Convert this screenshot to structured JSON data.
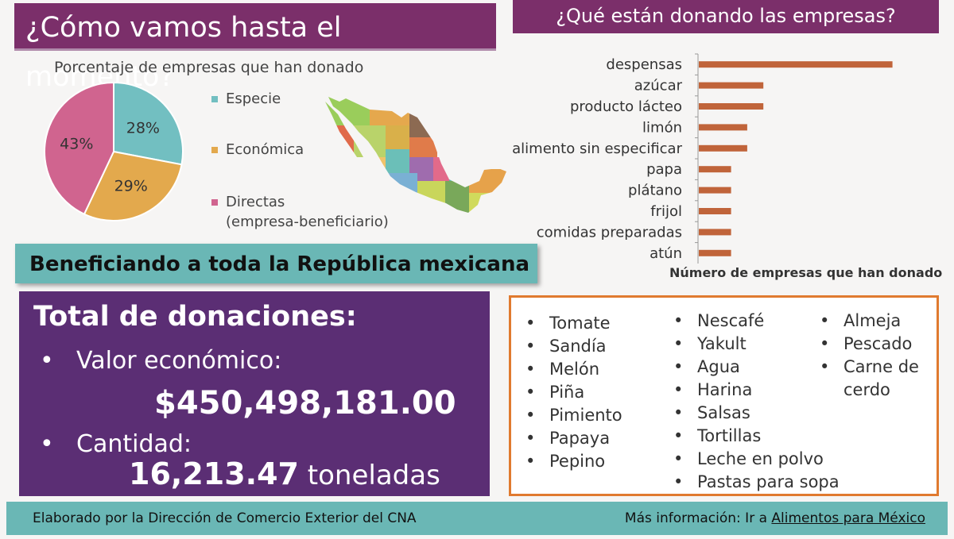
{
  "header": {
    "left_title": "¿Cómo vamos hasta el momento?",
    "right_title": "¿Qué están donando las empresas?"
  },
  "banner": "Beneficiando a toda la República mexicana",
  "totals": {
    "title": "Total de donaciones:",
    "econ_label": "Valor económico:",
    "econ_value": "$450,498,181.00",
    "qty_label": "Cantidad:",
    "qty_number": "16,213.47",
    "qty_unit": "toneladas",
    "bullet": "•"
  },
  "products": {
    "bullet": "•",
    "col1": [
      "Tomate",
      "Sandía",
      "Melón",
      "Piña",
      "Pimiento",
      "Papaya",
      "Pepino"
    ],
    "col2": [
      "Nescafé",
      "Yakult",
      "Agua",
      "Harina",
      "Salsas",
      "Tortillas",
      "Leche en polvo",
      "Pastas para sopa"
    ],
    "col3": [
      "Almeja",
      "Pescado",
      "Carne de",
      "cerdo"
    ]
  },
  "footer": {
    "left": "Elaborado por la Dirección de Comercio Exterior del CNA",
    "right_prefix": "Más información: Ir a ",
    "right_link": "Alimentos para México"
  },
  "chart_data": [
    {
      "type": "pie",
      "title": "Porcentaje de empresas que han donado",
      "labels": [
        "Especie",
        "Económica",
        "Directas (empresa-beneficiario)"
      ],
      "legend_lines": [
        [
          "Especie"
        ],
        [
          "Económica"
        ],
        [
          "Directas",
          "(empresa-beneficiario)"
        ]
      ],
      "values": [
        28,
        29,
        43
      ],
      "value_labels": [
        "28%",
        "29%",
        "43%"
      ],
      "colors": [
        "#72bfc1",
        "#e3a94d",
        "#d0648f"
      ],
      "legend_position": "right"
    },
    {
      "type": "bar",
      "orientation": "horizontal",
      "categories": [
        "despensas",
        "azúcar",
        "producto lácteo",
        "limón",
        "alimento sin especificar",
        "papa",
        "plátano",
        "frijol",
        "comidas preparadas",
        "atún"
      ],
      "values": [
        12,
        4,
        4,
        3,
        3,
        2,
        2,
        2,
        2,
        2
      ],
      "xlabel": "Número de empresas que han donado",
      "xlim": [
        0,
        14
      ],
      "color": "#c0643a",
      "grid": false
    }
  ]
}
